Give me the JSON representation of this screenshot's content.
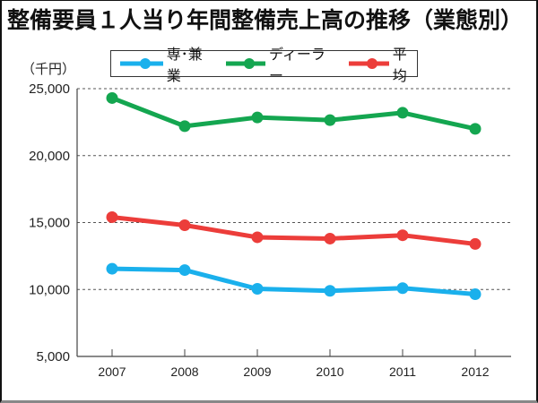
{
  "chart_data": {
    "type": "line",
    "title": "整備要員１人当り年間整備売上高の推移（業態別）",
    "unit_label": "（千円）",
    "xlabel": "",
    "ylabel": "（千円）",
    "x": [
      "2007",
      "2008",
      "2009",
      "2010",
      "2011",
      "2012"
    ],
    "ylim": [
      5000,
      25000
    ],
    "yticks": [
      5000,
      10000,
      15000,
      20000,
      25000
    ],
    "ytick_labels": [
      "5,000",
      "10,000",
      "15,000",
      "20,000",
      "25,000"
    ],
    "grid": "horizontal-dotted",
    "legend_position": "top",
    "series": [
      {
        "name": "専･兼業",
        "color": "#1ab0ec",
        "values": [
          11550,
          11450,
          10050,
          9900,
          10100,
          9650
        ]
      },
      {
        "name": "ディーラー",
        "color": "#14a650",
        "values": [
          24300,
          22200,
          22850,
          22650,
          23200,
          22000
        ]
      },
      {
        "name": "平均",
        "color": "#ec3d3a",
        "values": [
          15400,
          14800,
          13900,
          13800,
          14050,
          13400
        ]
      }
    ]
  }
}
